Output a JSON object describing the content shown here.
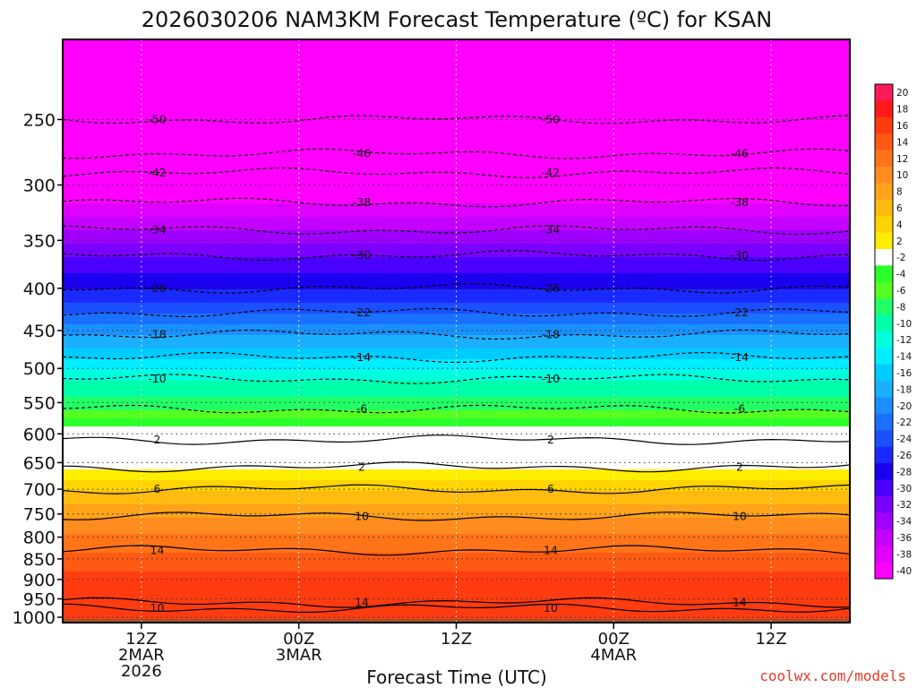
{
  "chart_data": {
    "type": "heatmap",
    "title": "2026030206 NAM3KM Forecast Temperature (ºC) for KSAN",
    "xlabel": "Forecast Time (UTC)",
    "ylabel": "",
    "credit": "coolwx.com/models",
    "y_axis": {
      "scale": "pressure (hPa, inverted)",
      "range": [
        1015,
        200
      ],
      "ticks": [
        "250",
        "300",
        "350",
        "400",
        "450",
        "500",
        "550",
        "600",
        "650",
        "700",
        "750",
        "800",
        "850",
        "900",
        "950",
        "1000"
      ]
    },
    "x_axis": {
      "range_hours": [
        0,
        60
      ],
      "ticks": [
        {
          "hour": 6,
          "lines": [
            "12Z",
            "2MAR",
            "2026"
          ]
        },
        {
          "hour": 18,
          "lines": [
            "00Z",
            "3MAR"
          ]
        },
        {
          "hour": 30,
          "lines": [
            "12Z"
          ]
        },
        {
          "hour": 42,
          "lines": [
            "00Z",
            "4MAR"
          ]
        },
        {
          "hour": 54,
          "lines": [
            "12Z"
          ]
        }
      ]
    },
    "grid": true,
    "colorbar": {
      "placement": "right",
      "levels": [
        "20",
        "18",
        "16",
        "14",
        "12",
        "10",
        "8",
        "6",
        "4",
        "2",
        "-2",
        "-4",
        "-6",
        "-8",
        "-10",
        "-12",
        "-14",
        "-16",
        "-18",
        "-20",
        "-22",
        "-24",
        "-26",
        "-28",
        "-30",
        "-32",
        "-34",
        "-36",
        "-38",
        "-40"
      ],
      "colors": [
        "#ff1a5a",
        "#ff1a1a",
        "#ff3b10",
        "#ff5a14",
        "#ff7418",
        "#ff8c1e",
        "#ffa31a",
        "#ffbb10",
        "#ffd400",
        "#ffee00",
        "#ffffff",
        "#2aff2a",
        "#55ff22",
        "#22ff66",
        "#00ffaa",
        "#00ffdd",
        "#00eeff",
        "#00ccff",
        "#1ab0ff",
        "#1a90ff",
        "#1a70ff",
        "#1a50ff",
        "#1a2aff",
        "#1a00ee",
        "#4a00ff",
        "#7a00ff",
        "#a000ff",
        "#c400ff",
        "#e000ff",
        "#ff00ff"
      ]
    },
    "profile_by_level": [
      {
        "p": 200,
        "t": -55
      },
      {
        "p": 250,
        "t": -50
      },
      {
        "p": 275,
        "t": -46
      },
      {
        "p": 290,
        "t": -42
      },
      {
        "p": 315,
        "t": -38
      },
      {
        "p": 340,
        "t": -34
      },
      {
        "p": 365,
        "t": -30
      },
      {
        "p": 400,
        "t": -26
      },
      {
        "p": 428,
        "t": -22
      },
      {
        "p": 455,
        "t": -18
      },
      {
        "p": 485,
        "t": -14
      },
      {
        "p": 515,
        "t": -10
      },
      {
        "p": 560,
        "t": -6
      },
      {
        "p": 610,
        "t": 2
      },
      {
        "p": 630,
        "t": 0
      },
      {
        "p": 658,
        "t": 2
      },
      {
        "p": 700,
        "t": 6
      },
      {
        "p": 755,
        "t": 10
      },
      {
        "p": 830,
        "t": 14
      },
      {
        "p": 930,
        "t": 18
      },
      {
        "p": 1000,
        "t": 17
      }
    ],
    "contours": [
      {
        "label": "-50",
        "p": 250
      },
      {
        "label": "-46",
        "p": 275
      },
      {
        "label": "-42",
        "p": 290
      },
      {
        "label": "-38",
        "p": 315
      },
      {
        "label": "-34",
        "p": 340
      },
      {
        "label": "-30",
        "p": 365
      },
      {
        "label": "-26",
        "p": 400
      },
      {
        "label": "-22",
        "p": 428
      },
      {
        "label": "-18",
        "p": 455
      },
      {
        "label": "-14",
        "p": 485
      },
      {
        "label": "-10",
        "p": 515
      },
      {
        "label": "-6",
        "p": 560
      },
      {
        "label": "2",
        "p": 610
      },
      {
        "label": "2",
        "p": 658
      },
      {
        "label": "6",
        "p": 700
      },
      {
        "label": "10",
        "p": 755
      },
      {
        "label": "14",
        "p": 830
      },
      {
        "label": "14",
        "p": 960
      },
      {
        "label": "10",
        "p": 975
      }
    ]
  }
}
